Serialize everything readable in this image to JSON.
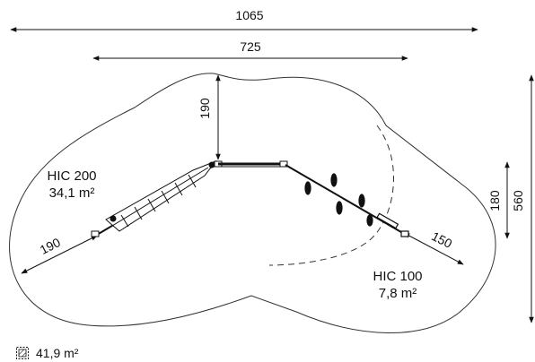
{
  "dimensions": {
    "overall_width": "1065",
    "inner_width": "725",
    "height_total": "560",
    "height_inner": "180",
    "clearance_top": "190",
    "clearance_left": "190",
    "clearance_right": "150"
  },
  "zones": {
    "hic200": {
      "label": "HIC 200",
      "area": "34,1 m²"
    },
    "hic100": {
      "label": "HIC 100",
      "area": "7,8 m²"
    }
  },
  "legend": {
    "total_area": "41,9 m²",
    "icon": "hatched-square-icon"
  }
}
